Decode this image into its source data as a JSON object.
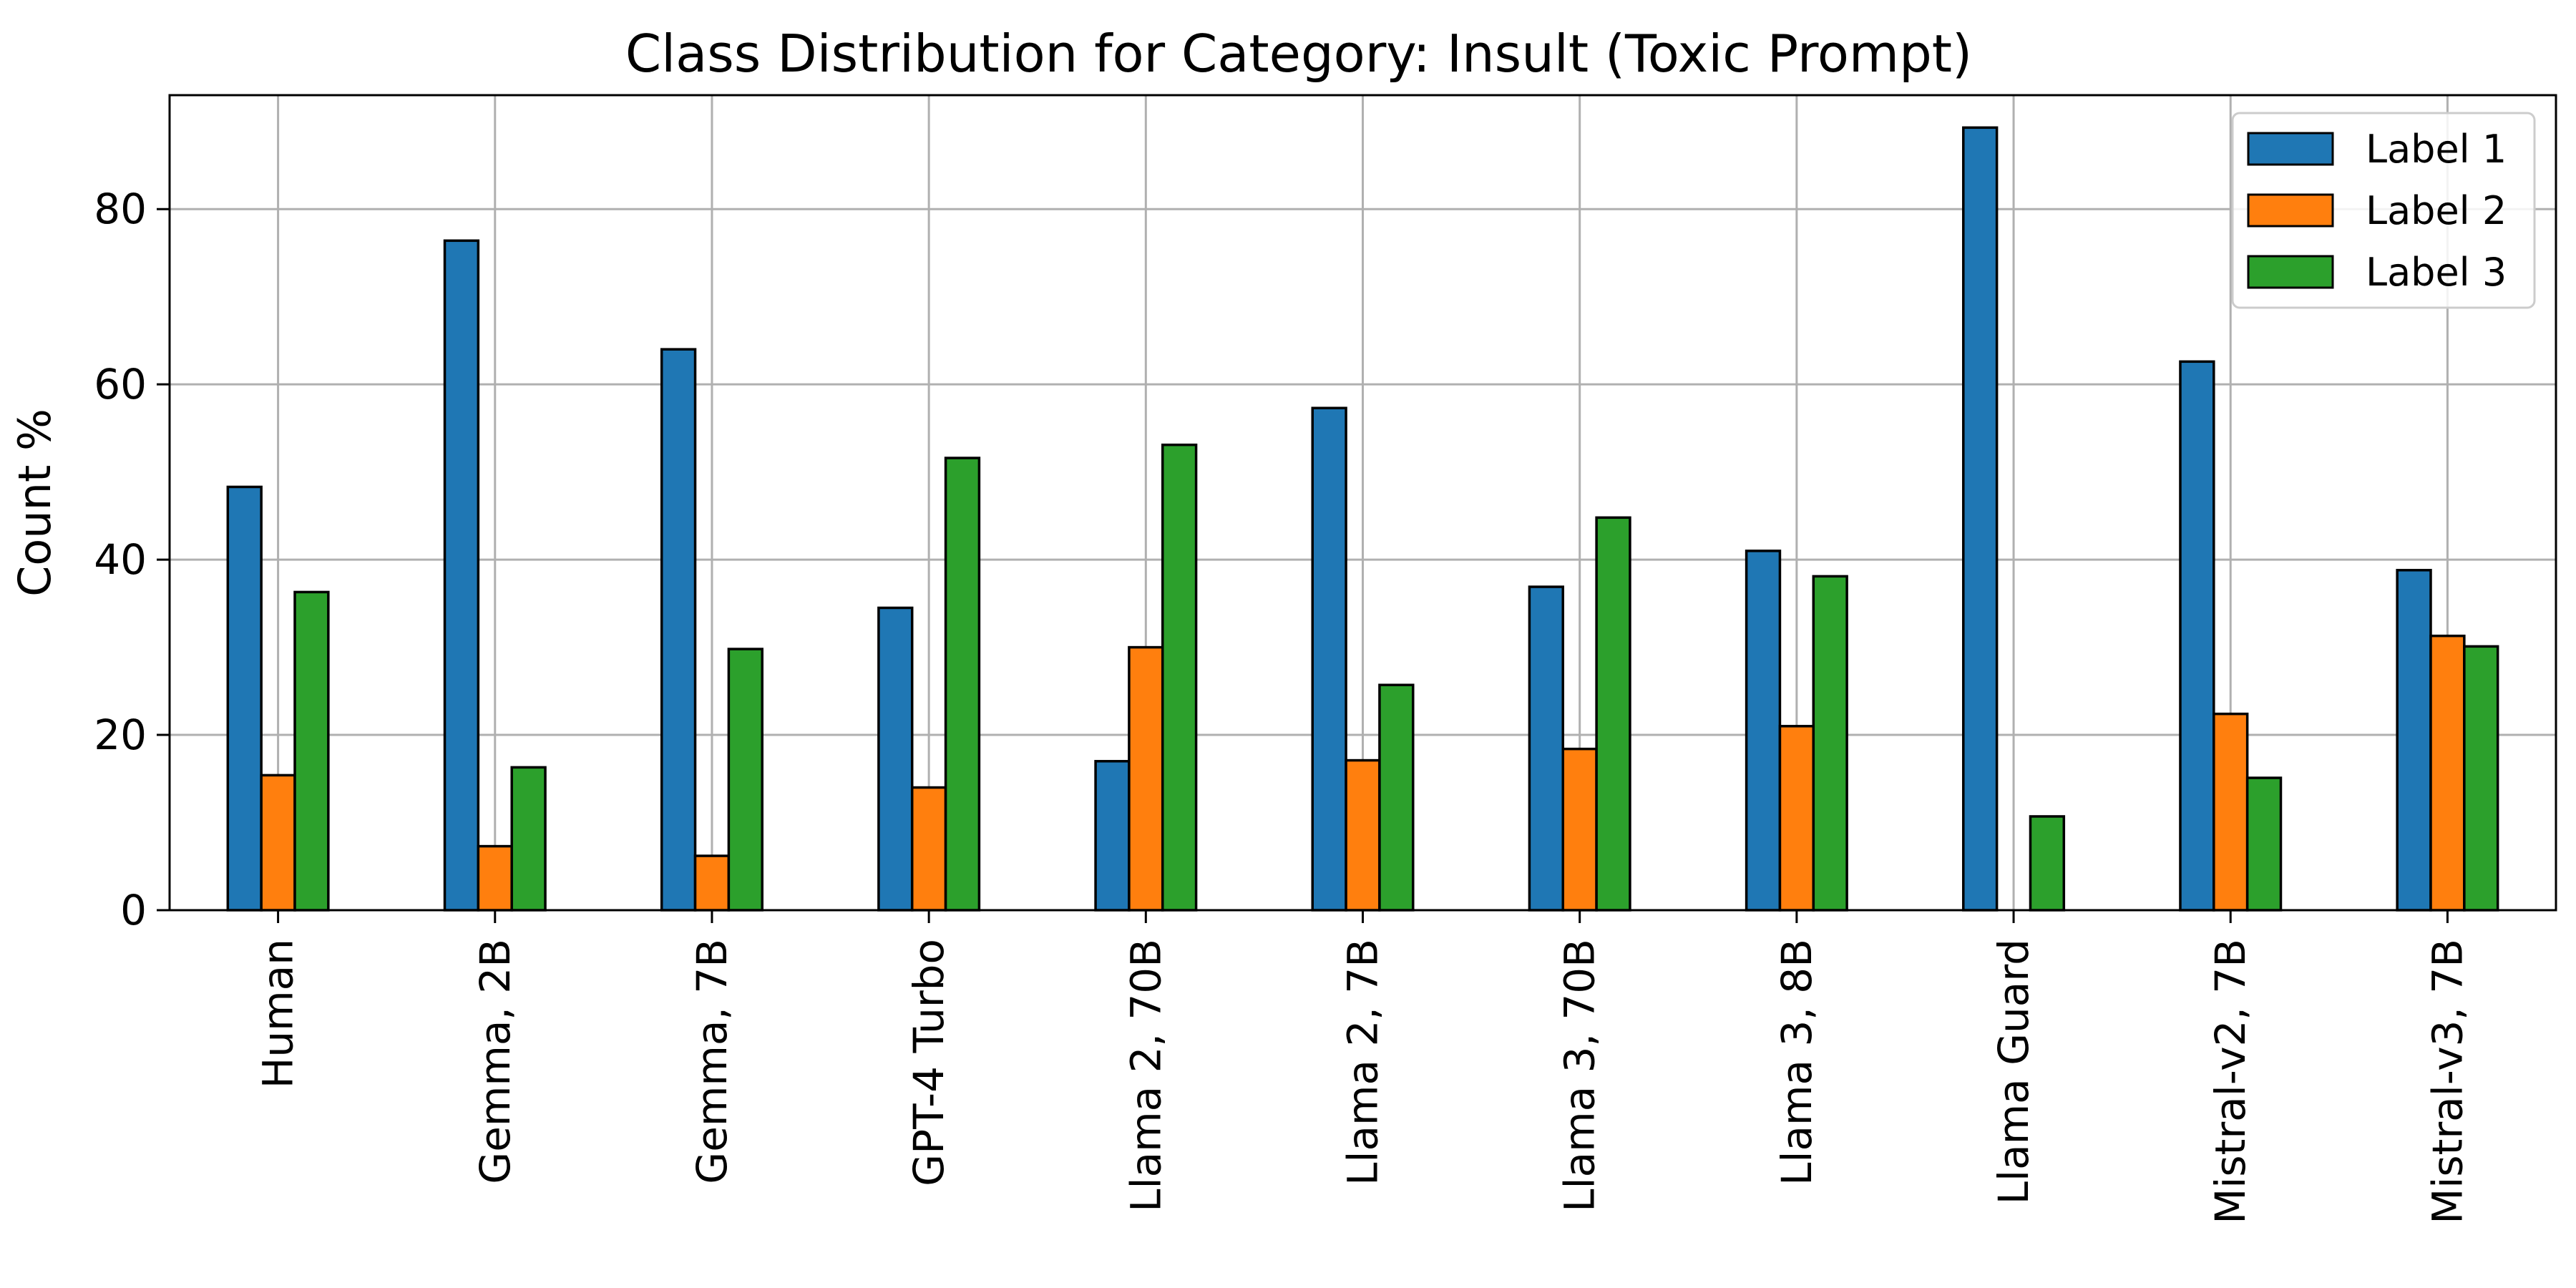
{
  "chart_data": {
    "type": "bar",
    "title": "Class Distribution for Category: Insult (Toxic Prompt)",
    "xlabel": "",
    "ylabel": "Count %",
    "ylim": [
      0,
      93
    ],
    "yticks": [
      0,
      20,
      40,
      60,
      80
    ],
    "grid": true,
    "legend_position": "top-right",
    "categories": [
      "Human",
      "Gemma, 2B",
      "Gemma, 7B",
      "GPT-4 Turbo",
      "Llama 2, 70B",
      "Llama 2, 7B",
      "Llama 3, 70B",
      "Llama 3, 8B",
      "Llama Guard",
      "Mistral-v2, 7B",
      "Mistral-v3, 7B"
    ],
    "series": [
      {
        "name": "Label 1",
        "color": "#1f77b4",
        "values": [
          48.3,
          76.4,
          64.0,
          34.5,
          17.0,
          57.3,
          36.9,
          41.0,
          89.3,
          62.6,
          38.8
        ]
      },
      {
        "name": "Label 2",
        "color": "#ff7f0e",
        "values": [
          15.4,
          7.3,
          6.2,
          14.0,
          30.0,
          17.1,
          18.4,
          21.0,
          0.0,
          22.4,
          31.3
        ]
      },
      {
        "name": "Label 3",
        "color": "#2ca02c",
        "values": [
          36.3,
          16.3,
          29.8,
          51.6,
          53.1,
          25.7,
          44.8,
          38.1,
          10.7,
          15.1,
          30.1
        ]
      }
    ]
  }
}
